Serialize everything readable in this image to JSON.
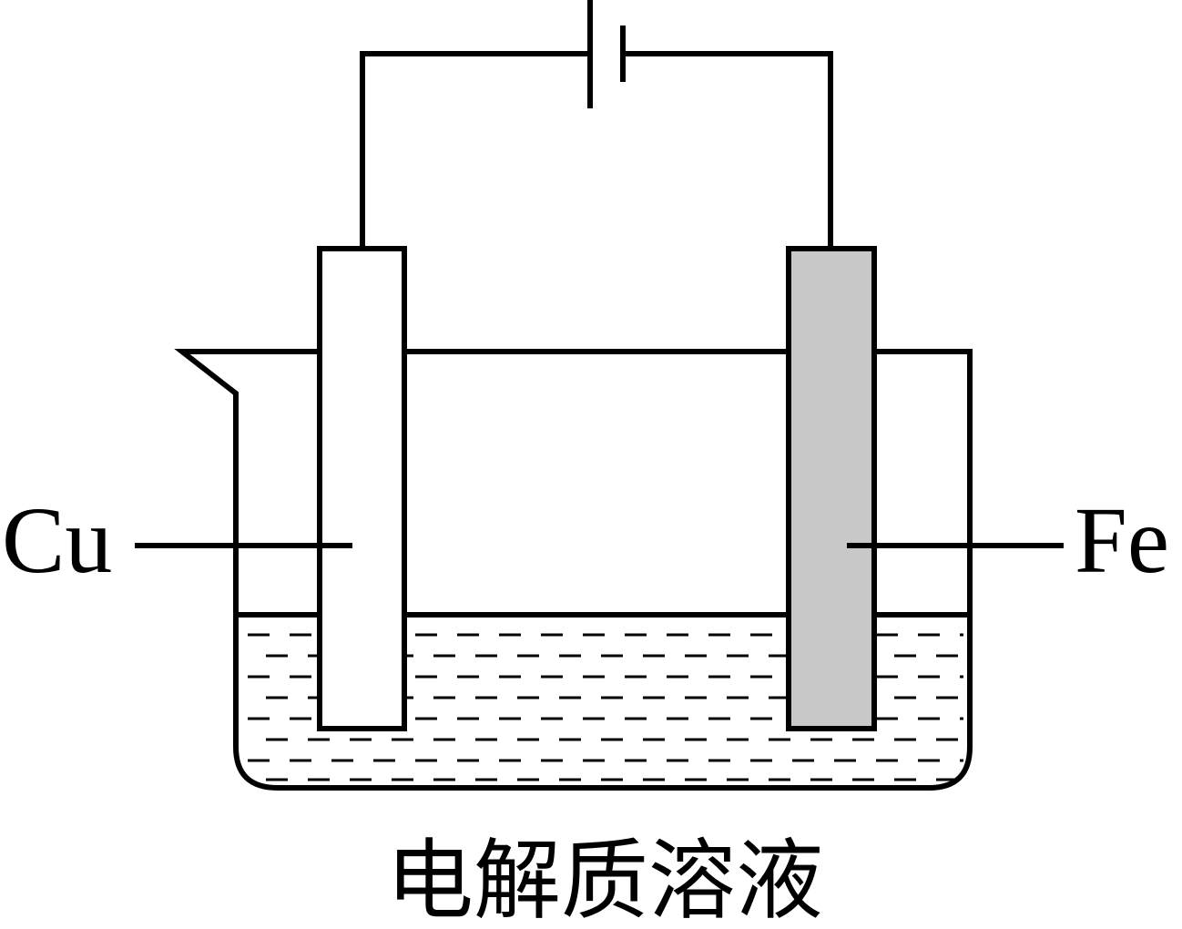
{
  "labels": {
    "left_electrode": "Cu",
    "right_electrode": "Fe",
    "solution": "电解质溶液"
  },
  "colors": {
    "line": "#000000",
    "fe_electrode_fill": "#c8c8c8",
    "cu_electrode_fill": "#ffffff"
  }
}
